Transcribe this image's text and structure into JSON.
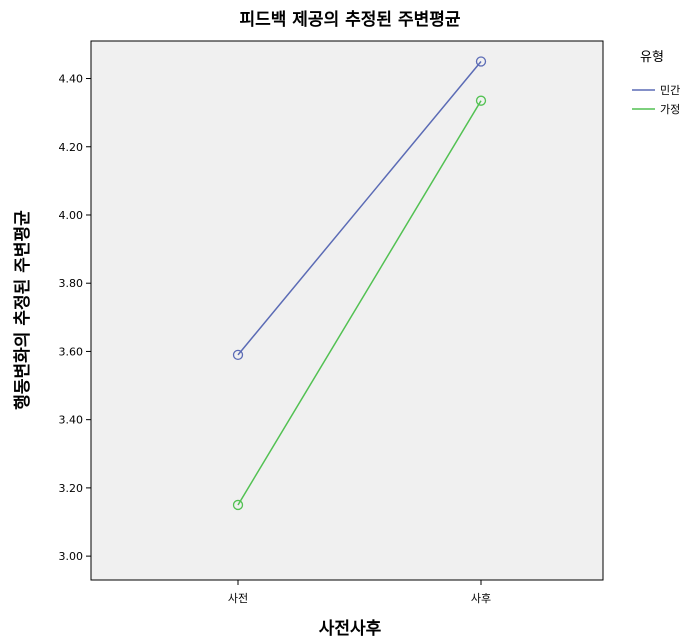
{
  "chart_data": {
    "type": "line",
    "title": "피드백 제공의 추정된 주변평균",
    "xlabel": "사전사후",
    "ylabel": "행동변화의 추정된 주변평균",
    "categories": [
      "사전",
      "사후"
    ],
    "ylim": [
      2.93,
      4.51
    ],
    "yticks": [
      "3.00",
      "3.20",
      "3.40",
      "3.60",
      "3.80",
      "4.00",
      "4.20",
      "4.40"
    ],
    "grid": false,
    "legend": {
      "title": "유형",
      "position": "top-right"
    },
    "series": [
      {
        "name": "민간",
        "color": "#5b6bb5",
        "values": [
          3.59,
          4.45
        ]
      },
      {
        "name": "가정",
        "color": "#52c152",
        "values": [
          3.15,
          4.335
        ]
      }
    ]
  }
}
